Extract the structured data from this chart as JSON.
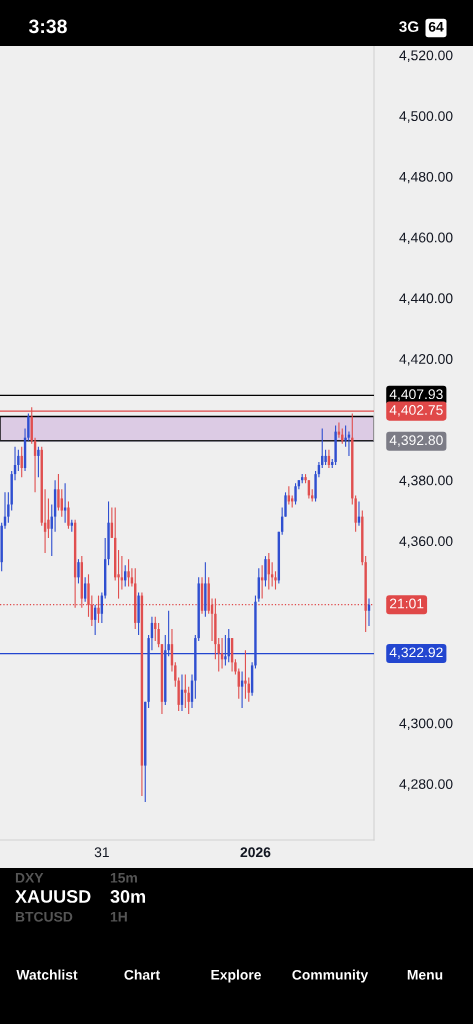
{
  "chart_data": {
    "type": "candlestick",
    "categories": [
      null,
      null,
      null,
      null,
      null,
      null,
      null,
      null,
      null,
      null,
      null,
      null,
      null,
      null,
      null,
      null,
      null,
      null,
      null,
      null,
      null,
      null,
      null,
      null,
      null,
      null,
      null,
      null,
      null,
      null,
      "31",
      null,
      null,
      null,
      null,
      null,
      null,
      null,
      null,
      null,
      null,
      null,
      null,
      null,
      null,
      null,
      null,
      null,
      null,
      null,
      null,
      null,
      null,
      null,
      null,
      null,
      null,
      null,
      null,
      null,
      null,
      null,
      null,
      null,
      null,
      null,
      null,
      null,
      null,
      null,
      null,
      null,
      null,
      null,
      null,
      null,
      "2026",
      null,
      null,
      null,
      null,
      null,
      null,
      null,
      null,
      null,
      null,
      null,
      null,
      null,
      null,
      null,
      null,
      null,
      null,
      null,
      null,
      null,
      null,
      null,
      null,
      null,
      null,
      null,
      null,
      null,
      null,
      null,
      null,
      null,
      null
    ],
    "ohlc": [
      [
        4353,
        4366,
        4350,
        4365
      ],
      [
        4365,
        4376,
        4364,
        4368
      ],
      [
        4368,
        4376,
        4366,
        4372
      ],
      [
        4372,
        4383,
        4370,
        4382
      ],
      [
        4382,
        4391,
        4380,
        4385
      ],
      [
        4385,
        4390,
        4383,
        4388
      ],
      [
        4388,
        4391,
        4381,
        4384
      ],
      [
        4384,
        4397,
        4383,
        4394
      ],
      [
        4394,
        4402,
        4393,
        4401
      ],
      [
        4401,
        4404,
        4392,
        4393
      ],
      [
        4393,
        4394,
        4376,
        4388
      ],
      [
        4388,
        4391,
        4381,
        4390
      ],
      [
        4390,
        4391,
        4365,
        4366
      ],
      [
        4366,
        4377,
        4356,
        4363
      ],
      [
        4367,
        4374,
        4361,
        4364
      ],
      [
        4364,
        4372,
        4355,
        4368
      ],
      [
        4368,
        4380,
        4363,
        4377
      ],
      [
        4377,
        4382,
        4370,
        4371
      ],
      [
        4374,
        4377,
        4368,
        4370
      ],
      [
        4370,
        4379,
        4366,
        4371
      ],
      [
        4371,
        4373,
        4364,
        4365
      ],
      [
        4365,
        4367,
        4363,
        4366
      ],
      [
        4366,
        4367,
        4338,
        4348
      ],
      [
        4348,
        4354,
        4346,
        4353
      ],
      [
        4353,
        4355,
        4338,
        4341
      ],
      [
        4341,
        4348,
        4340,
        4346
      ],
      [
        4346,
        4349,
        4335,
        4339
      ],
      [
        4339,
        4342,
        4332,
        4334
      ],
      [
        4334,
        4339,
        4329,
        4338
      ],
      [
        4338,
        4342,
        4333,
        4336
      ],
      [
        4336,
        4343,
        4333,
        4342
      ],
      [
        4342,
        4361,
        4341,
        4354
      ],
      [
        4354,
        4373,
        4352,
        4366
      ],
      [
        4366,
        4371,
        4361,
        4361
      ],
      [
        4361,
        4371,
        4347,
        4348
      ],
      [
        4349,
        4357,
        4341,
        4348
      ],
      [
        4348,
        4355,
        4344,
        4347
      ],
      [
        4347,
        4352,
        4345,
        4350
      ],
      [
        4350,
        4354,
        4345,
        4348
      ],
      [
        4348,
        4351,
        4345,
        4346
      ],
      [
        4346,
        4351,
        4331,
        4333
      ],
      [
        4333,
        4343,
        4329,
        4342
      ],
      [
        4342,
        4343,
        4276,
        4286
      ],
      [
        4286,
        4307,
        4274,
        4307
      ],
      [
        4307,
        4329,
        4305,
        4328
      ],
      [
        4328,
        4335,
        4324,
        4333
      ],
      [
        4333,
        4335,
        4327,
        4331
      ],
      [
        4331,
        4333,
        4325,
        4326
      ],
      [
        4326,
        4326,
        4303,
        4307
      ],
      [
        4307,
        4329,
        4306,
        4324
      ],
      [
        4324,
        4337,
        4322,
        4326
      ],
      [
        4326,
        4331,
        4317,
        4319
      ],
      [
        4319,
        4320,
        4312,
        4314
      ],
      [
        4314,
        4315,
        4304,
        4306
      ],
      [
        4306,
        4316,
        4304,
        4311
      ],
      [
        4311,
        4316,
        4305,
        4310
      ],
      [
        4310,
        4312,
        4303,
        4307
      ],
      [
        4307,
        4316,
        4305,
        4314
      ],
      [
        4314,
        4329,
        4308,
        4328
      ],
      [
        4328,
        4348,
        4327,
        4346
      ],
      [
        4346,
        4348,
        4336,
        4337
      ],
      [
        4337,
        4353,
        4335,
        4346
      ],
      [
        4346,
        4348,
        4336,
        4337
      ],
      [
        4339,
        4341,
        4327,
        4336
      ],
      [
        4336,
        4341,
        4321,
        4326
      ],
      [
        4326,
        4328,
        4317,
        4323
      ],
      [
        4323,
        4328,
        4318,
        4321
      ],
      [
        4321,
        4329,
        4319,
        4322
      ],
      [
        4322,
        4331,
        4320,
        4328
      ],
      [
        4328,
        4328,
        4317,
        4320
      ],
      [
        4320,
        4321,
        4316,
        4317
      ],
      [
        4317,
        4318,
        4308,
        4312
      ],
      [
        4312,
        4317,
        4305,
        4314
      ],
      [
        4314,
        4324,
        4308,
        4313
      ],
      [
        4313,
        4315,
        4307,
        4310
      ],
      [
        4310,
        4320,
        4309,
        4319
      ],
      [
        4319,
        4342,
        4318,
        4340
      ],
      [
        4341,
        4351,
        4340,
        4348
      ],
      [
        4348,
        4352,
        4341,
        4347
      ],
      [
        4347,
        4355,
        4345,
        4354
      ],
      [
        4354,
        4356,
        4344,
        4349
      ],
      [
        4349,
        4353,
        4345,
        4348
      ],
      [
        4348,
        4350,
        4344,
        4347
      ],
      [
        4347,
        4363,
        4346,
        4363
      ],
      [
        4363,
        4371,
        4362,
        4368
      ],
      [
        4368,
        4376,
        4368,
        4375
      ],
      [
        4375,
        4378,
        4372,
        4373
      ],
      [
        4374,
        4375,
        4371,
        4373
      ],
      [
        4373,
        4379,
        4372,
        4378
      ],
      [
        4378,
        4380,
        4377,
        4380
      ],
      [
        4380,
        4382,
        4379,
        4381
      ],
      [
        4381,
        4382,
        4379,
        4380
      ],
      [
        4380,
        4380,
        4374,
        4375
      ],
      [
        4375,
        4377,
        4373,
        4374
      ],
      [
        4374,
        4383,
        4373,
        4382
      ],
      [
        4382,
        4386,
        4381,
        4385
      ],
      [
        4385,
        4397,
        4384,
        4388
      ],
      [
        4386,
        4390,
        4385,
        4388
      ],
      [
        4388,
        4390,
        4384,
        4385
      ],
      [
        4385,
        4387,
        4384,
        4386
      ],
      [
        4386,
        4398,
        4385,
        4396
      ],
      [
        4396,
        4399,
        4394,
        4395
      ],
      [
        4395,
        4397,
        4392,
        4393
      ],
      [
        4393,
        4398,
        4391,
        4394
      ],
      [
        4394,
        4396,
        4388,
        4395
      ],
      [
        4394,
        4402,
        4372,
        4374
      ],
      [
        4374,
        4375,
        4363,
        4366
      ],
      [
        4366,
        4373,
        4365,
        4368
      ],
      [
        4368,
        4370,
        4352,
        4353
      ],
      [
        4353,
        4355,
        4330,
        4337
      ],
      [
        4337,
        4341,
        4332,
        4339
      ]
    ],
    "colors": [
      "#2f4fd0",
      "#2f4fd0",
      "#2f4fd0",
      "#2f4fd0",
      "#2f4fd0",
      "#2f4fd0",
      "#e04f4f",
      "#2f4fd0",
      "#2f4fd0",
      "#e04f4f",
      "#e04f4f",
      "#2f4fd0",
      "#e04f4f",
      "#e04f4f",
      "#e04f4f",
      "#2f4fd0",
      "#2f4fd0",
      "#e04f4f",
      "#e04f4f",
      "#2f4fd0",
      "#e04f4f",
      "#2f4fd0",
      "#e04f4f",
      "#2f4fd0",
      "#e04f4f",
      "#2f4fd0",
      "#e04f4f",
      "#e04f4f",
      "#2f4fd0",
      "#e04f4f",
      "#2f4fd0",
      "#2f4fd0",
      "#2f4fd0",
      "#e04f4f",
      "#e04f4f",
      "#e04f4f",
      "#e04f4f",
      "#2f4fd0",
      "#e04f4f",
      "#e04f4f",
      "#e04f4f",
      "#2f4fd0",
      "#e04f4f",
      "#2f4fd0",
      "#2f4fd0",
      "#2f4fd0",
      "#e04f4f",
      "#e04f4f",
      "#e04f4f",
      "#2f4fd0",
      "#2f4fd0",
      "#e04f4f",
      "#e04f4f",
      "#e04f4f",
      "#2f4fd0",
      "#e04f4f",
      "#e04f4f",
      "#2f4fd0",
      "#2f4fd0",
      "#2f4fd0",
      "#e04f4f",
      "#2f4fd0",
      "#e04f4f",
      "#e04f4f",
      "#e04f4f",
      "#e04f4f",
      "#e04f4f",
      "#2f4fd0",
      "#2f4fd0",
      "#e04f4f",
      "#e04f4f",
      "#e04f4f",
      "#2f4fd0",
      "#e04f4f",
      "#e04f4f",
      "#2f4fd0",
      "#2f4fd0",
      "#2f4fd0",
      "#e04f4f",
      "#2f4fd0",
      "#e04f4f",
      "#e04f4f",
      "#e04f4f",
      "#2f4fd0",
      "#2f4fd0",
      "#2f4fd0",
      "#e04f4f",
      "#e04f4f",
      "#2f4fd0",
      "#2f4fd0",
      "#2f4fd0",
      "#e04f4f",
      "#e04f4f",
      "#e04f4f",
      "#2f4fd0",
      "#2f4fd0",
      "#2f4fd0",
      "#2f4fd0",
      "#e04f4f",
      "#2f4fd0",
      "#2f4fd0",
      "#e04f4f",
      "#e04f4f",
      "#2f4fd0",
      "#2f4fd0",
      "#e04f4f",
      "#e04f4f",
      "#2f4fd0",
      "#e04f4f",
      "#e04f4f",
      "#2f4fd0"
    ],
    "ylim": [
      4261.5,
      4523
    ],
    "yticks": [
      {
        "value": 4280,
        "label": "4,280.00"
      },
      {
        "value": 4300,
        "label": "4,300.00"
      },
      {
        "value": 4360,
        "label": "4,360.00"
      },
      {
        "value": 4380,
        "label": "4,380.00"
      },
      {
        "value": 4420,
        "label": "4,420.00"
      },
      {
        "value": 4440,
        "label": "4,440.00"
      },
      {
        "value": 4460,
        "label": "4,460.00"
      },
      {
        "value": 4480,
        "label": "4,480.00"
      },
      {
        "value": 4500,
        "label": "4,500.00"
      },
      {
        "value": 4520,
        "label": "4,520.00"
      }
    ],
    "bands": [
      {
        "axis": "y",
        "from": 4393,
        "to": 4401,
        "color": "#dccbe4"
      }
    ],
    "ref_lines": [
      {
        "axis": "y",
        "value": 4407.93,
        "label": "4,407.93",
        "color": "#000000",
        "line_style": "solid"
      },
      {
        "axis": "y",
        "value": 4402.75,
        "label": "4,402.75",
        "color": "#e04848",
        "line_style": "solid"
      },
      {
        "axis": "y",
        "value": 4392.8,
        "label": "4,392.80",
        "color": "#7c7c86",
        "line_style": "solid"
      },
      {
        "axis": "y",
        "value": 4322.92,
        "label": "4,322.92",
        "color": "#2346d0",
        "line_style": "solid"
      },
      {
        "axis": "y",
        "value": 4339,
        "color": "#e04848",
        "line_style": "dotted"
      }
    ],
    "annotations": [
      "21:01",
      "3:38",
      "3G",
      "64",
      "DXY",
      "15m",
      "XAUUSD",
      "30m",
      "BTCUSD",
      "1H",
      "Watchlist",
      "Chart",
      "Explore",
      "Community",
      "Menu"
    ]
  }
}
